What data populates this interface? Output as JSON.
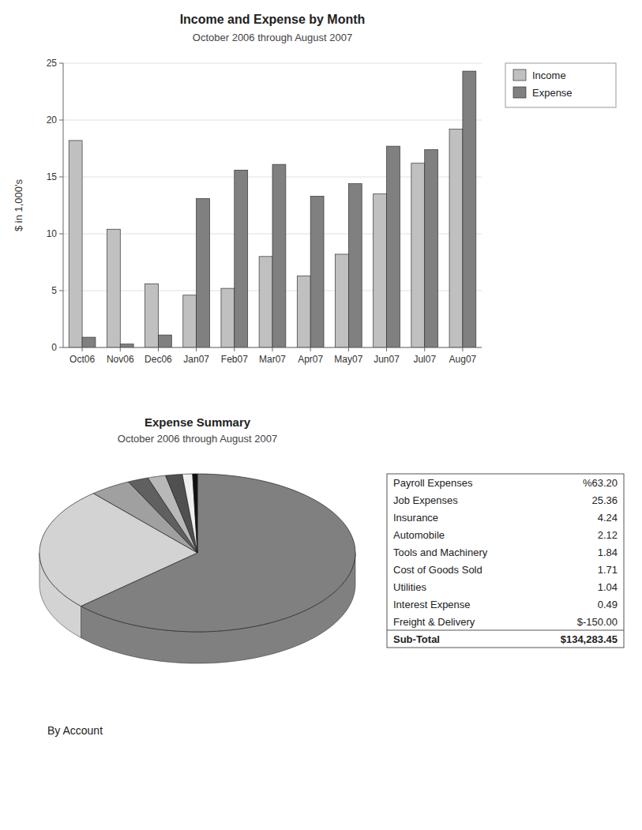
{
  "chart_data": [
    {
      "type": "bar",
      "title": "Income and Expense by Month",
      "subtitle": "October 2006 through August 2007",
      "ylabel": "$ in 1,000's",
      "categories": [
        "Oct06",
        "Nov06",
        "Dec06",
        "Jan07",
        "Feb07",
        "Mar07",
        "Apr07",
        "May07",
        "Jun07",
        "Jul07",
        "Aug07"
      ],
      "series": [
        {
          "name": "Income",
          "color": "#c0c0c0",
          "values": [
            18.2,
            10.4,
            5.6,
            4.6,
            5.2,
            8.0,
            6.3,
            8.2,
            13.5,
            16.2,
            19.2
          ]
        },
        {
          "name": "Expense",
          "color": "#808080",
          "values": [
            0.9,
            0.3,
            1.1,
            13.1,
            15.6,
            16.1,
            13.3,
            14.4,
            17.7,
            17.4,
            24.3
          ]
        }
      ],
      "ylim": [
        0,
        25
      ],
      "yticks": [
        0,
        5,
        10,
        15,
        20,
        25
      ],
      "grid": true,
      "legend": "upper right"
    },
    {
      "type": "pie",
      "title": "Expense Summary",
      "subtitle": "October 2006 through August 2007",
      "annotation": "By Account",
      "values": [
        63.2,
        25.36,
        4.24,
        2.12,
        1.84,
        1.71,
        1.04,
        0.49
      ],
      "colors": [
        "#808080",
        "#d3d3d3",
        "#a0a0a0",
        "#606060",
        "#b8b8b8",
        "#505050",
        "#f0f0f0",
        "#101010"
      ]
    },
    {
      "type": "table",
      "categories": [
        "Payroll Expenses",
        "Job Expenses",
        "Insurance",
        "Automobile",
        "Tools and Machinery",
        "Cost of Goods Sold",
        "Utilities",
        "Interest Expense",
        "Freight & Delivery",
        "Sub-Total"
      ],
      "values": [
        63.2,
        25.36,
        4.24,
        2.12,
        1.84,
        1.71,
        1.04,
        0.49,
        -150.0,
        134283.45
      ],
      "value_labels": [
        "%63.20",
        "25.36",
        "4.24",
        "2.12",
        "1.84",
        "1.71",
        "1.04",
        "0.49",
        "$-150.00",
        "$134,283.45"
      ]
    }
  ]
}
